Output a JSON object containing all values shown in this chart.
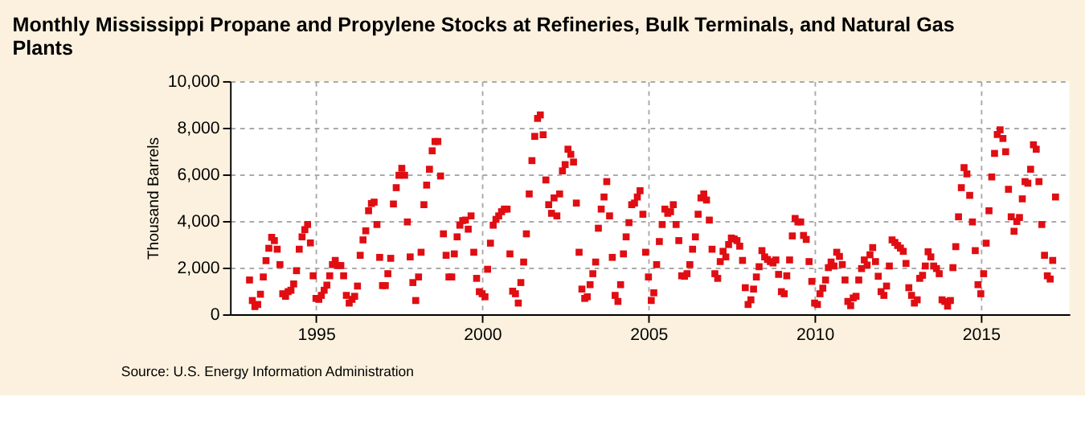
{
  "chart_data": {
    "type": "scatter",
    "title": "Monthly Mississippi Propane and Propylene Stocks at Refineries, Bulk Terminals, and Natural Gas Plants",
    "ylabel": "Thousand Barrels",
    "annotations": [
      "Source: U.S. Energy Information Administration"
    ],
    "x": [
      "1993-01",
      "1993-02",
      "1993-03",
      "1993-04",
      "1993-05",
      "1993-06",
      "1993-07",
      "1993-08",
      "1993-09",
      "1993-10",
      "1993-11",
      "1993-12",
      "1994-01",
      "1994-02",
      "1994-03",
      "1994-04",
      "1994-05",
      "1994-06",
      "1994-07",
      "1994-08",
      "1994-09",
      "1994-10",
      "1994-11",
      "1994-12",
      "1995-01",
      "1995-02",
      "1995-03",
      "1995-04",
      "1995-05",
      "1995-06",
      "1995-07",
      "1995-08",
      "1995-09",
      "1995-10",
      "1995-11",
      "1995-12",
      "1996-01",
      "1996-02",
      "1996-03",
      "1996-04",
      "1996-05",
      "1996-06",
      "1996-07",
      "1996-08",
      "1996-09",
      "1996-10",
      "1996-11",
      "1996-12",
      "1997-01",
      "1997-02",
      "1997-03",
      "1997-04",
      "1997-05",
      "1997-06",
      "1997-07",
      "1997-08",
      "1997-09",
      "1997-10",
      "1997-11",
      "1997-12",
      "1998-01",
      "1998-02",
      "1998-03",
      "1998-04",
      "1998-05",
      "1998-06",
      "1998-07",
      "1998-08",
      "1998-09",
      "1998-10",
      "1998-11",
      "1998-12",
      "1999-01",
      "1999-02",
      "1999-03",
      "1999-04",
      "1999-05",
      "1999-06",
      "1999-07",
      "1999-08",
      "1999-09",
      "1999-10",
      "1999-11",
      "1999-12",
      "2000-01",
      "2000-02",
      "2000-03",
      "2000-04",
      "2000-05",
      "2000-06",
      "2000-07",
      "2000-08",
      "2000-09",
      "2000-10",
      "2000-11",
      "2000-12",
      "2001-01",
      "2001-02",
      "2001-03",
      "2001-04",
      "2001-05",
      "2001-06",
      "2001-07",
      "2001-08",
      "2001-09",
      "2001-10",
      "2001-11",
      "2001-12",
      "2002-01",
      "2002-02",
      "2002-03",
      "2002-04",
      "2002-05",
      "2002-06",
      "2002-07",
      "2002-08",
      "2002-09",
      "2002-10",
      "2002-11",
      "2002-12",
      "2003-01",
      "2003-02",
      "2003-03",
      "2003-04",
      "2003-05",
      "2003-06",
      "2003-07",
      "2003-08",
      "2003-09",
      "2003-10",
      "2003-11",
      "2003-12",
      "2004-01",
      "2004-02",
      "2004-03",
      "2004-04",
      "2004-05",
      "2004-06",
      "2004-07",
      "2004-08",
      "2004-09",
      "2004-10",
      "2004-11",
      "2004-12",
      "2005-01",
      "2005-02",
      "2005-03",
      "2005-04",
      "2005-05",
      "2005-06",
      "2005-07",
      "2005-08",
      "2005-09",
      "2005-10",
      "2005-11",
      "2005-12",
      "2006-01",
      "2006-02",
      "2006-03",
      "2006-04",
      "2006-05",
      "2006-06",
      "2006-07",
      "2006-08",
      "2006-09",
      "2006-10",
      "2006-11",
      "2006-12",
      "2007-01",
      "2007-02",
      "2007-03",
      "2007-04",
      "2007-05",
      "2007-06",
      "2007-07",
      "2007-08",
      "2007-09",
      "2007-10",
      "2007-11",
      "2007-12",
      "2008-01",
      "2008-02",
      "2008-03",
      "2008-04",
      "2008-05",
      "2008-06",
      "2008-07",
      "2008-08",
      "2008-09",
      "2008-10",
      "2008-11",
      "2008-12",
      "2009-01",
      "2009-02",
      "2009-03",
      "2009-04",
      "2009-05",
      "2009-06",
      "2009-07",
      "2009-08",
      "2009-09",
      "2009-10",
      "2009-11",
      "2009-12",
      "2010-01",
      "2010-02",
      "2010-03",
      "2010-04",
      "2010-05",
      "2010-06",
      "2010-07",
      "2010-08",
      "2010-09",
      "2010-10",
      "2010-11",
      "2010-12",
      "2011-01",
      "2011-02",
      "2011-03",
      "2011-04",
      "2011-05",
      "2011-06",
      "2011-07",
      "2011-08",
      "2011-09",
      "2011-10",
      "2011-11",
      "2011-12",
      "2012-01",
      "2012-02",
      "2012-03",
      "2012-04",
      "2012-05",
      "2012-06",
      "2012-07",
      "2012-08",
      "2012-09",
      "2012-10",
      "2012-11",
      "2012-12",
      "2013-01",
      "2013-02",
      "2013-03",
      "2013-04",
      "2013-05",
      "2013-06",
      "2013-07",
      "2013-08",
      "2013-09",
      "2013-10",
      "2013-11",
      "2013-12",
      "2014-01",
      "2014-02",
      "2014-03",
      "2014-04",
      "2014-05",
      "2014-06",
      "2014-07",
      "2014-08",
      "2014-09",
      "2014-10",
      "2014-11",
      "2014-12",
      "2015-01",
      "2015-02",
      "2015-03",
      "2015-04",
      "2015-05",
      "2015-06",
      "2015-07",
      "2015-08",
      "2015-09",
      "2015-10",
      "2015-11",
      "2015-12",
      "2016-01",
      "2016-02",
      "2016-03",
      "2016-04",
      "2016-05",
      "2016-06",
      "2016-07",
      "2016-08",
      "2016-09",
      "2016-10",
      "2016-11",
      "2016-12",
      "2017-01",
      "2017-02",
      "2017-03",
      "2017-04"
    ],
    "series": [
      {
        "color": "#e00d12",
        "values": [
          1470,
          590,
          330,
          420,
          860,
          1600,
          2300,
          2830,
          3300,
          3160,
          2790,
          2130,
          880,
          770,
          970,
          1030,
          1300,
          1870,
          2790,
          3320,
          3630,
          3850,
          3060,
          1650,
          680,
          640,
          810,
          1030,
          1250,
          1650,
          2130,
          2310,
          2090,
          2090,
          1650,
          810,
          480,
          640,
          770,
          1210,
          2530,
          3190,
          3580,
          4440,
          4750,
          4810,
          3850,
          2440,
          1230,
          1230,
          1740,
          2400,
          4730,
          5430,
          5960,
          6260,
          5960,
          3960,
          2460,
          1360,
          590,
          1600,
          2660,
          4700,
          5540,
          6220,
          7010,
          7410,
          7410,
          5930,
          3450,
          2530,
          1600,
          1600,
          2590,
          3320,
          3820,
          4020,
          4040,
          3650,
          4220,
          2660,
          1540,
          970,
          880,
          750,
          1930,
          3050,
          3820,
          4070,
          4220,
          4400,
          4510,
          4510,
          2590,
          990,
          880,
          480,
          1360,
          2240,
          3450,
          5160,
          6590,
          7630,
          8400,
          8550,
          7700,
          5760,
          4700,
          4330,
          4990,
          4220,
          5160,
          6150,
          6420,
          7080,
          6860,
          6530,
          4770,
          2660,
          1080,
          680,
          750,
          1270,
          1740,
          2240,
          3690,
          4510,
          5030,
          5690,
          4220,
          2440,
          810,
          550,
          1270,
          2590,
          3320,
          3930,
          4700,
          4770,
          5030,
          5300,
          4290,
          2660,
          1600,
          590,
          920,
          2130,
          3120,
          3850,
          4510,
          4330,
          4400,
          4700,
          3850,
          3160,
          1650,
          1630,
          1740,
          2130,
          2790,
          3320,
          4290,
          4990,
          5160,
          4900,
          4040,
          2790,
          1740,
          1540,
          2260,
          2700,
          2460,
          2990,
          3270,
          3230,
          3160,
          2920,
          2310,
          1140,
          420,
          620,
          1080,
          1600,
          2040,
          2730,
          2460,
          2350,
          2260,
          2200,
          2330,
          1710,
          970,
          880,
          1650,
          2330,
          3360,
          4110,
          3960,
          3960,
          3380,
          3210,
          2260,
          1410,
          480,
          420,
          880,
          1120,
          1470,
          2000,
          2240,
          2070,
          2660,
          2480,
          2130,
          1470,
          550,
          370,
          700,
          770,
          1470,
          1960,
          2330,
          2110,
          2550,
          2860,
          2260,
          1630,
          970,
          810,
          1210,
          2070,
          3190,
          3080,
          2950,
          2840,
          2700,
          2180,
          1140,
          810,
          480,
          620,
          1540,
          1670,
          2070,
          2680,
          2460,
          2070,
          1960,
          1740,
          620,
          550,
          350,
          590,
          2000,
          2900,
          4180,
          5430,
          6290,
          6020,
          5100,
          3960,
          2730,
          1270,
          880,
          1740,
          3050,
          4440,
          5890,
          6900,
          7710,
          7910,
          7540,
          6970,
          5360,
          4180,
          3560,
          3980,
          4150,
          4950,
          5690,
          5620,
          6220,
          7270,
          7080,
          5690,
          3850,
          2530,
          1650,
          1510,
          2310,
          5030
        ]
      }
    ],
    "xlim": [
      "1992-06",
      "2017-09"
    ],
    "xticks": [
      "1995",
      "2000",
      "2005",
      "2010",
      "2015"
    ],
    "ylim": [
      0,
      10000
    ],
    "yticks": [
      0,
      {
        "value": 2000,
        "label": "2,000"
      },
      {
        "value": 4000,
        "label": "4,000"
      },
      {
        "value": 6000,
        "label": "6,000"
      },
      {
        "value": 8000,
        "label": "8,000"
      },
      {
        "value": 10000,
        "label": "10,000"
      }
    ],
    "grid": true,
    "marker": "square",
    "legend": false
  }
}
